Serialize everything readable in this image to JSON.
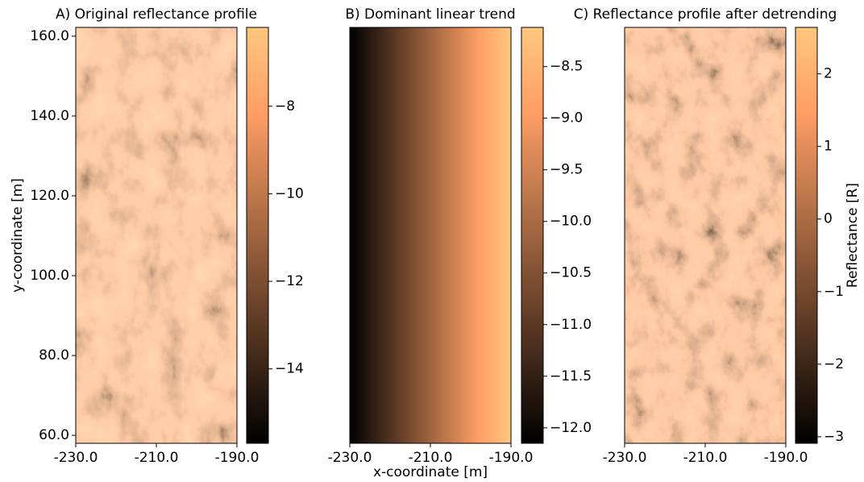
{
  "chart_data": [
    {
      "type": "heatmap",
      "title": "A) Original reflectance profile",
      "colormap": "copper",
      "xlim": [
        -230,
        -190
      ],
      "xticks": [
        {
          "value": -230,
          "label": "-230.0"
        },
        {
          "value": -210,
          "label": "-210.0"
        },
        {
          "value": -190,
          "label": "-190.0"
        }
      ],
      "ylim": [
        58,
        162.2
      ],
      "ylabel": "y-coordinate [m]",
      "yticks": [
        {
          "value": 60,
          "label": "60.0"
        },
        {
          "value": 80,
          "label": "80.0"
        },
        {
          "value": 100,
          "label": "100.0"
        },
        {
          "value": 120,
          "label": "120.0"
        },
        {
          "value": 140,
          "label": "140.0"
        },
        {
          "value": 160,
          "label": "160.0"
        }
      ],
      "colorbar": {
        "lim": [
          -15.7,
          -6.2
        ],
        "ticks": [
          {
            "value": -14,
            "label": "−14"
          },
          {
            "value": -12,
            "label": "−12"
          },
          {
            "value": -10,
            "label": "−10"
          },
          {
            "value": -8,
            "label": "−8"
          }
        ]
      }
    },
    {
      "type": "heatmap",
      "title": "B) Dominant linear trend",
      "colormap": "copper",
      "xlim": [
        -230,
        -190
      ],
      "xlabel": "x-coordinate [m]",
      "xticks": [
        {
          "value": -230,
          "label": "-230.0"
        },
        {
          "value": -210,
          "label": "-210.0"
        },
        {
          "value": -190,
          "label": "-190.0"
        }
      ],
      "colorbar": {
        "lim": [
          -12.15,
          -8.12
        ],
        "ticks": [
          {
            "value": -12,
            "label": "−12.0"
          },
          {
            "value": -11.5,
            "label": "−11.5"
          },
          {
            "value": -11,
            "label": "−11.0"
          },
          {
            "value": -10.5,
            "label": "−10.5"
          },
          {
            "value": -10,
            "label": "−10.0"
          },
          {
            "value": -9.5,
            "label": "−9.5"
          },
          {
            "value": -9,
            "label": "−9.0"
          },
          {
            "value": -8.5,
            "label": "−8.5"
          }
        ]
      }
    },
    {
      "type": "heatmap",
      "title": "C) Reflectance profile after detrending",
      "colormap": "copper",
      "xlim": [
        -230,
        -190
      ],
      "xticks": [
        {
          "value": -230,
          "label": "-230.0"
        },
        {
          "value": -210,
          "label": "-210.0"
        },
        {
          "value": -190,
          "label": "-190.0"
        }
      ],
      "colorbar": {
        "lim": [
          -3.09,
          2.64
        ],
        "label": "Reflectance [R]",
        "ticks": [
          {
            "value": -3,
            "label": "−3"
          },
          {
            "value": -2,
            "label": "−2"
          },
          {
            "value": -1,
            "label": "−1"
          },
          0,
          1,
          2
        ]
      }
    }
  ]
}
